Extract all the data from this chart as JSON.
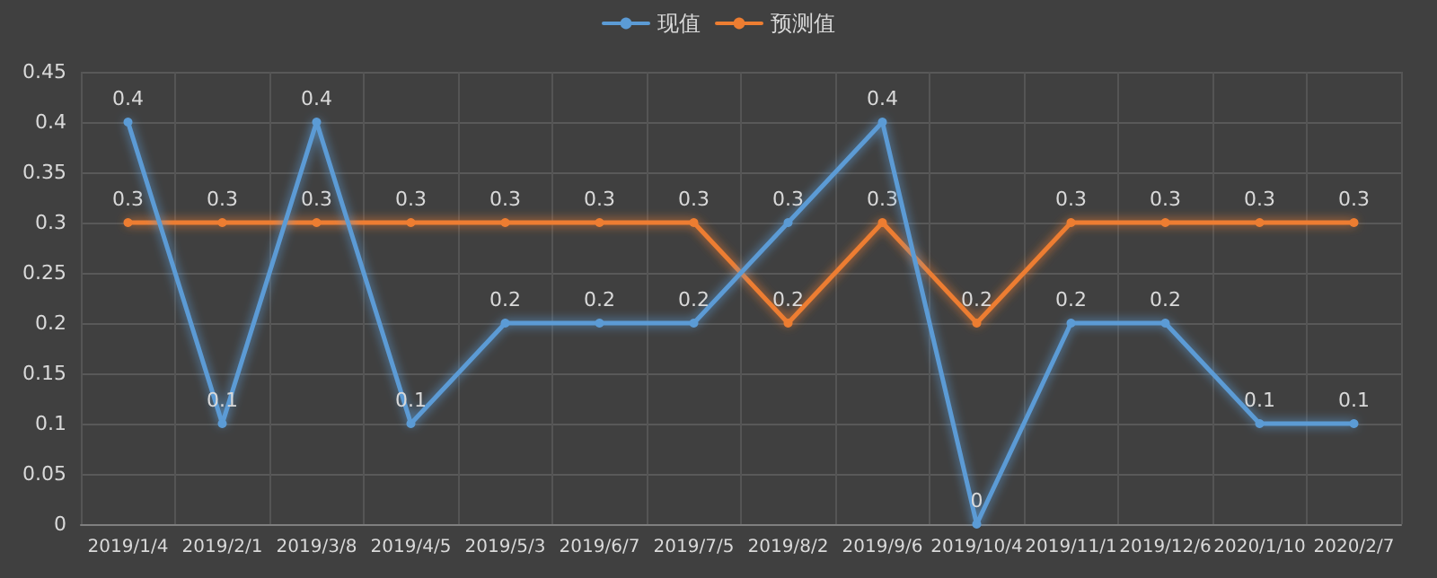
{
  "chart_data": {
    "type": "line",
    "categories": [
      "2019/1/4",
      "2019/2/1",
      "2019/3/8",
      "2019/4/5",
      "2019/5/3",
      "2019/6/7",
      "2019/7/5",
      "2019/8/2",
      "2019/9/6",
      "2019/10/4",
      "2019/11/1",
      "2019/12/6",
      "2020/1/10",
      "2020/2/7"
    ],
    "series": [
      {
        "name": "现值",
        "color": "#5b9bd5",
        "values": [
          0.4,
          0.1,
          0.4,
          0.1,
          0.2,
          0.2,
          0.2,
          0.3,
          0.4,
          0,
          0.2,
          0.2,
          0.1,
          0.1
        ]
      },
      {
        "name": "预测值",
        "color": "#ed7d31",
        "values": [
          0.3,
          0.3,
          0.3,
          0.3,
          0.3,
          0.3,
          0.3,
          0.2,
          0.3,
          0.2,
          0.3,
          0.3,
          0.3,
          0.3
        ]
      }
    ],
    "ylim": [
      0,
      0.45
    ],
    "yticks": [
      0,
      0.05,
      0.1,
      0.15,
      0.2,
      0.25,
      0.3,
      0.35,
      0.4,
      0.45
    ],
    "grid": true,
    "legend": "top",
    "marker": "circle",
    "line_style": "solid",
    "data_labels": true
  }
}
